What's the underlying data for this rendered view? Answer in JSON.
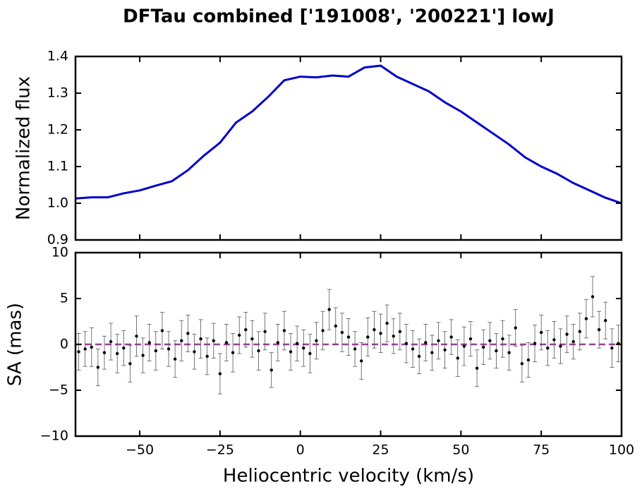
{
  "chart_data": [
    {
      "type": "line",
      "title": "DFTau combined ['191008', '200221'] lowJ",
      "ylabel": "Normalized flux",
      "xlim": [
        -70,
        100
      ],
      "xticks": [
        -50,
        -25,
        0,
        25,
        50,
        75,
        100
      ],
      "ylim": [
        0.9,
        1.4
      ],
      "yticks": [
        0.9,
        {
          "value": 1,
          "label": "1.0"
        },
        1.1,
        1.2,
        1.3,
        1.4
      ],
      "series": [
        {
          "color": "#0000cc",
          "x": [
            -70,
            -65,
            -60,
            -55,
            -50,
            -45,
            -40,
            -35,
            -30,
            -25,
            -20,
            -15,
            -10,
            -5,
            0,
            5,
            10,
            15,
            20,
            25,
            30,
            35,
            40,
            45,
            50,
            55,
            60,
            65,
            70,
            75,
            80,
            85,
            90,
            95,
            100
          ],
          "values": [
            1.013,
            1.016,
            1.016,
            1.027,
            1.035,
            1.048,
            1.06,
            1.09,
            1.13,
            1.165,
            1.22,
            1.25,
            1.29,
            1.335,
            1.345,
            1.343,
            1.348,
            1.345,
            1.37,
            1.375,
            1.345,
            1.325,
            1.305,
            1.275,
            1.25,
            1.22,
            1.19,
            1.16,
            1.125,
            1.1,
            1.08,
            1.055,
            1.035,
            1.015,
            1.0
          ]
        }
      ]
    },
    {
      "type": "scatter",
      "xlabel": "Heliocentric velocity (km/s)",
      "ylabel": "SA (mas)",
      "xlim": [
        -70,
        100
      ],
      "xticks": [
        {
          "value": -50,
          "label": "−50"
        },
        {
          "value": -25,
          "label": "−25"
        },
        0,
        25,
        50,
        75,
        100
      ],
      "ylim": [
        -10,
        10
      ],
      "yticks": [
        {
          "value": -10,
          "label": "−10"
        },
        {
          "value": -5,
          "label": "−5"
        },
        0,
        5,
        10
      ],
      "reference_line": {
        "value": 0,
        "color": "#9b3d9b"
      },
      "color": "#000000",
      "error_color": "#555555",
      "x": [
        -69,
        -67,
        -65,
        -63,
        -61,
        -59,
        -57,
        -55,
        -53,
        -51,
        -49,
        -47,
        -45,
        -43,
        -41,
        -39,
        -37,
        -35,
        -33,
        -31,
        -29,
        -27,
        -25,
        -23,
        -21,
        -19,
        -17,
        -15,
        -13,
        -11,
        -9,
        -7,
        -5,
        -3,
        -1,
        1,
        3,
        5,
        7,
        9,
        11,
        13,
        15,
        17,
        19,
        21,
        23,
        25,
        27,
        29,
        31,
        33,
        35,
        37,
        39,
        41,
        43,
        45,
        47,
        49,
        51,
        53,
        55,
        57,
        59,
        61,
        63,
        65,
        67,
        69,
        71,
        73,
        75,
        77,
        79,
        81,
        83,
        85,
        87,
        89,
        91,
        93,
        95,
        97,
        99
      ],
      "values": [
        -0.8,
        -0.5,
        -0.3,
        -2.5,
        -0.9,
        0.3,
        -1.0,
        -0.4,
        -2.1,
        0.9,
        -1.2,
        0.2,
        -0.7,
        1.5,
        -0.5,
        -1.6,
        0.4,
        1.2,
        -0.8,
        0.6,
        -1.3,
        0.4,
        -3.2,
        0.2,
        -0.9,
        1.0,
        1.6,
        0.6,
        -0.7,
        1.4,
        -2.8,
        0.2,
        1.5,
        -0.8,
        0.1,
        -0.4,
        -1.0,
        0.4,
        1.5,
        3.8,
        2.0,
        1.3,
        0.8,
        -0.5,
        -1.8,
        0.8,
        1.6,
        1.2,
        2.3,
        0.9,
        1.4,
        0.1,
        -0.5,
        -1.3,
        0.2,
        -0.9,
        0.4,
        -0.6,
        0.8,
        -1.5,
        -0.2,
        0.6,
        -2.6,
        -0.3,
        0.4,
        -0.7,
        0.6,
        -0.9,
        1.8,
        -2.1,
        -1.7,
        0.1,
        1.3,
        -0.4,
        0.5,
        -0.2,
        1.1,
        0.3,
        1.4,
        2.8,
        5.2,
        1.6,
        2.6,
        -0.4,
        0.1
      ],
      "errors": [
        2.0,
        1.9,
        2.1,
        2.0,
        1.8,
        2.0,
        2.1,
        1.9,
        2.0,
        2.2,
        1.9,
        2.0,
        2.1,
        2.0,
        1.9,
        2.0,
        2.2,
        2.0,
        1.9,
        2.1,
        2.0,
        1.9,
        2.2,
        2.0,
        2.1,
        2.0,
        1.9,
        2.0,
        2.1,
        2.0,
        1.9,
        2.0,
        2.1,
        2.0,
        1.9,
        2.0,
        2.1,
        2.0,
        2.1,
        2.2,
        2.0,
        2.1,
        2.0,
        1.9,
        2.0,
        2.1,
        2.0,
        2.1,
        2.0,
        1.9,
        2.0,
        2.1,
        2.0,
        1.9,
        2.0,
        1.9,
        2.0,
        2.0,
        1.9,
        2.0,
        2.1,
        1.9,
        2.0,
        1.9,
        2.0,
        1.9,
        2.0,
        1.9,
        2.0,
        2.0,
        1.9,
        2.0,
        1.9,
        1.9,
        2.0,
        1.9,
        2.0,
        1.9,
        2.0,
        2.1,
        2.2,
        2.0,
        2.0,
        2.1,
        2.0
      ]
    }
  ]
}
